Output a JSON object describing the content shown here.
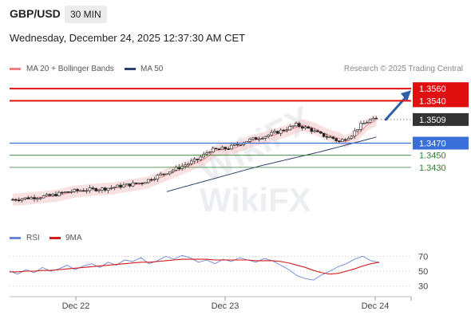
{
  "header": {
    "symbol": "GBP/USD",
    "timeframe": "30 MIN",
    "datetime": "Wednesday, December 24, 2025 12:37:30 AM CET"
  },
  "legend": {
    "ma20_label": "MA 20 + Bollinger Bands",
    "ma50_label": "MA 50",
    "ma20_color": "#f08080",
    "ma50_color": "#2c3e6b",
    "credit": "Research © 2025 Trading Central"
  },
  "rsi_legend": {
    "rsi_label": "RSI",
    "ma_label": "9MA",
    "rsi_color": "#6a85d8",
    "ma_color": "#d11a1a"
  },
  "chart_data": [
    {
      "type": "candlestick",
      "x_ticks": [
        "Dec 22",
        "Dec 23",
        "Dec 24"
      ],
      "ylim": [
        1.3335,
        1.358
      ],
      "price_levels": [
        {
          "label": "1.3560",
          "value": 1.356,
          "role": "resistance",
          "color": "#e01010"
        },
        {
          "label": "1.3540",
          "value": 1.354,
          "role": "resistance",
          "color": "#e01010"
        },
        {
          "label": "1.3509",
          "value": 1.3509,
          "role": "last-price",
          "color": "#333333"
        },
        {
          "label": "1.3470",
          "value": 1.347,
          "role": "pivot",
          "color": "#3a6fd8"
        },
        {
          "label": "1.3450",
          "value": 1.345,
          "role": "support",
          "color": "#2e7d32"
        },
        {
          "label": "1.3430",
          "value": 1.343,
          "role": "support",
          "color": "#2e7d32"
        }
      ],
      "price_path": [
        [
          0,
          1.3377
        ],
        [
          6,
          1.338
        ],
        [
          12,
          1.3383
        ],
        [
          18,
          1.339
        ],
        [
          24,
          1.3393
        ],
        [
          30,
          1.3395
        ],
        [
          36,
          1.34
        ],
        [
          42,
          1.3405
        ],
        [
          48,
          1.3418
        ],
        [
          54,
          1.343
        ],
        [
          60,
          1.3443
        ],
        [
          64,
          1.3458
        ],
        [
          70,
          1.3462
        ],
        [
          76,
          1.3474
        ],
        [
          82,
          1.3482
        ],
        [
          88,
          1.3492
        ],
        [
          92,
          1.35
        ],
        [
          96,
          1.3494
        ],
        [
          100,
          1.3484
        ],
        [
          104,
          1.3478
        ],
        [
          106,
          1.3472
        ],
        [
          110,
          1.3484
        ],
        [
          113,
          1.35
        ],
        [
          116,
          1.3508
        ],
        [
          118,
          1.3509
        ]
      ],
      "ma50_path": [
        [
          50,
          1.339
        ],
        [
          80,
          1.3432
        ],
        [
          100,
          1.3456
        ],
        [
          118,
          1.348
        ]
      ],
      "forecast": {
        "from": 1.3509,
        "to": 1.356,
        "direction": "up"
      }
    },
    {
      "type": "line",
      "title": "RSI",
      "y_ticks": [
        70,
        50,
        30
      ],
      "ylim": [
        20,
        80
      ],
      "series": [
        {
          "name": "RSI",
          "values": [
            50,
            46,
            52,
            48,
            55,
            50,
            53,
            58,
            52,
            57,
            60,
            55,
            62,
            58,
            65,
            63,
            68,
            60,
            64,
            70,
            66,
            71,
            68,
            62,
            65,
            60,
            66,
            63,
            68,
            65,
            62,
            67,
            64,
            58,
            52,
            44,
            40,
            38,
            45,
            50,
            56,
            60,
            66,
            70,
            64,
            62
          ]
        },
        {
          "name": "9MA",
          "values": [
            49,
            49,
            50,
            50,
            51,
            51,
            52,
            53,
            54,
            55,
            56,
            57,
            58,
            59,
            60,
            61,
            62,
            62,
            63,
            64,
            65,
            66,
            66,
            66,
            66,
            65,
            65,
            65,
            65,
            65,
            64,
            64,
            64,
            63,
            61,
            58,
            55,
            51,
            48,
            46,
            47,
            50,
            53,
            57,
            60,
            62
          ]
        }
      ]
    }
  ]
}
